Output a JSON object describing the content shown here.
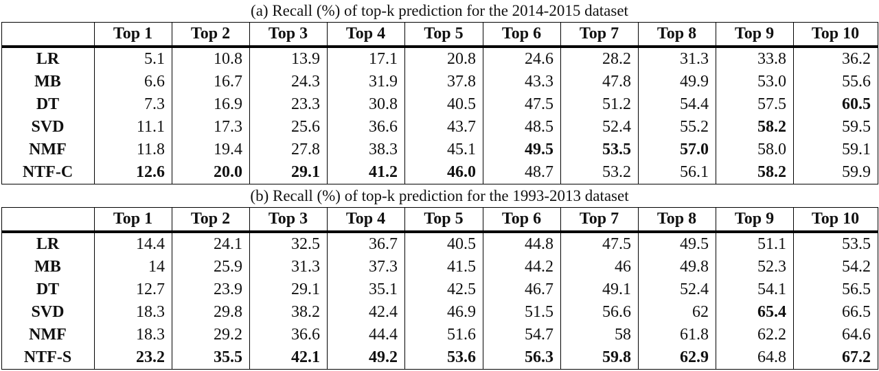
{
  "tables": [
    {
      "caption": "(a) Recall (%) of top-k prediction for the 2014-2015 dataset",
      "columns": [
        "Top 1",
        "Top 2",
        "Top 3",
        "Top 4",
        "Top 5",
        "Top 6",
        "Top 7",
        "Top 8",
        "Top 9",
        "Top 10"
      ],
      "rows": [
        {
          "label": "LR",
          "cells": [
            "5.1",
            "10.8",
            "13.9",
            "17.1",
            "20.8",
            "24.6",
            "28.2",
            "31.3",
            "33.8",
            "36.2"
          ],
          "bold": []
        },
        {
          "label": "MB",
          "cells": [
            "6.6",
            "16.7",
            "24.3",
            "31.9",
            "37.8",
            "43.3",
            "47.8",
            "49.9",
            "53.0",
            "55.6"
          ],
          "bold": []
        },
        {
          "label": "DT",
          "cells": [
            "7.3",
            "16.9",
            "23.3",
            "30.8",
            "40.5",
            "47.5",
            "51.2",
            "54.4",
            "57.5",
            "60.5"
          ],
          "bold": [
            9
          ]
        },
        {
          "label": "SVD",
          "cells": [
            "11.1",
            "17.3",
            "25.6",
            "36.6",
            "43.7",
            "48.5",
            "52.4",
            "55.2",
            "58.2",
            "59.5"
          ],
          "bold": [
            8
          ]
        },
        {
          "label": "NMF",
          "cells": [
            "11.8",
            "19.4",
            "27.8",
            "38.3",
            "45.1",
            "49.5",
            "53.5",
            "57.0",
            "58.0",
            "59.1"
          ],
          "bold": [
            5,
            6,
            7
          ]
        },
        {
          "label": "NTF-C",
          "cells": [
            "12.6",
            "20.0",
            "29.1",
            "41.2",
            "46.0",
            "48.7",
            "53.2",
            "56.1",
            "58.2",
            "59.9"
          ],
          "bold": [
            0,
            1,
            2,
            3,
            4,
            8
          ]
        }
      ]
    },
    {
      "caption": "(b) Recall (%) of top-k prediction for the 1993-2013 dataset",
      "columns": [
        "Top 1",
        "Top 2",
        "Top 3",
        "Top 4",
        "Top 5",
        "Top 6",
        "Top 7",
        "Top 8",
        "Top 9",
        "Top 10"
      ],
      "rows": [
        {
          "label": "LR",
          "cells": [
            "14.4",
            "24.1",
            "32.5",
            "36.7",
            "40.5",
            "44.8",
            "47.5",
            "49.5",
            "51.1",
            "53.5"
          ],
          "bold": []
        },
        {
          "label": "MB",
          "cells": [
            "14",
            "25.9",
            "31.3",
            "37.3",
            "41.5",
            "44.2",
            "46",
            "49.8",
            "52.3",
            "54.2"
          ],
          "bold": []
        },
        {
          "label": "DT",
          "cells": [
            "12.7",
            "23.9",
            "29.1",
            "35.1",
            "42.5",
            "46.7",
            "49.1",
            "52.4",
            "54.1",
            "56.5"
          ],
          "bold": []
        },
        {
          "label": "SVD",
          "cells": [
            "18.3",
            "29.8",
            "38.2",
            "42.4",
            "46.9",
            "51.5",
            "56.6",
            "62",
            "65.4",
            "66.5"
          ],
          "bold": [
            8
          ]
        },
        {
          "label": "NMF",
          "cells": [
            "18.3",
            "29.2",
            "36.6",
            "44.4",
            "51.6",
            "54.7",
            "58",
            "61.8",
            "62.2",
            "64.6"
          ],
          "bold": []
        },
        {
          "label": "NTF-S",
          "cells": [
            "23.2",
            "35.5",
            "42.1",
            "49.2",
            "53.6",
            "56.3",
            "59.8",
            "62.9",
            "64.8",
            "67.2"
          ],
          "bold": [
            0,
            1,
            2,
            3,
            4,
            5,
            6,
            7,
            9
          ]
        }
      ]
    }
  ]
}
